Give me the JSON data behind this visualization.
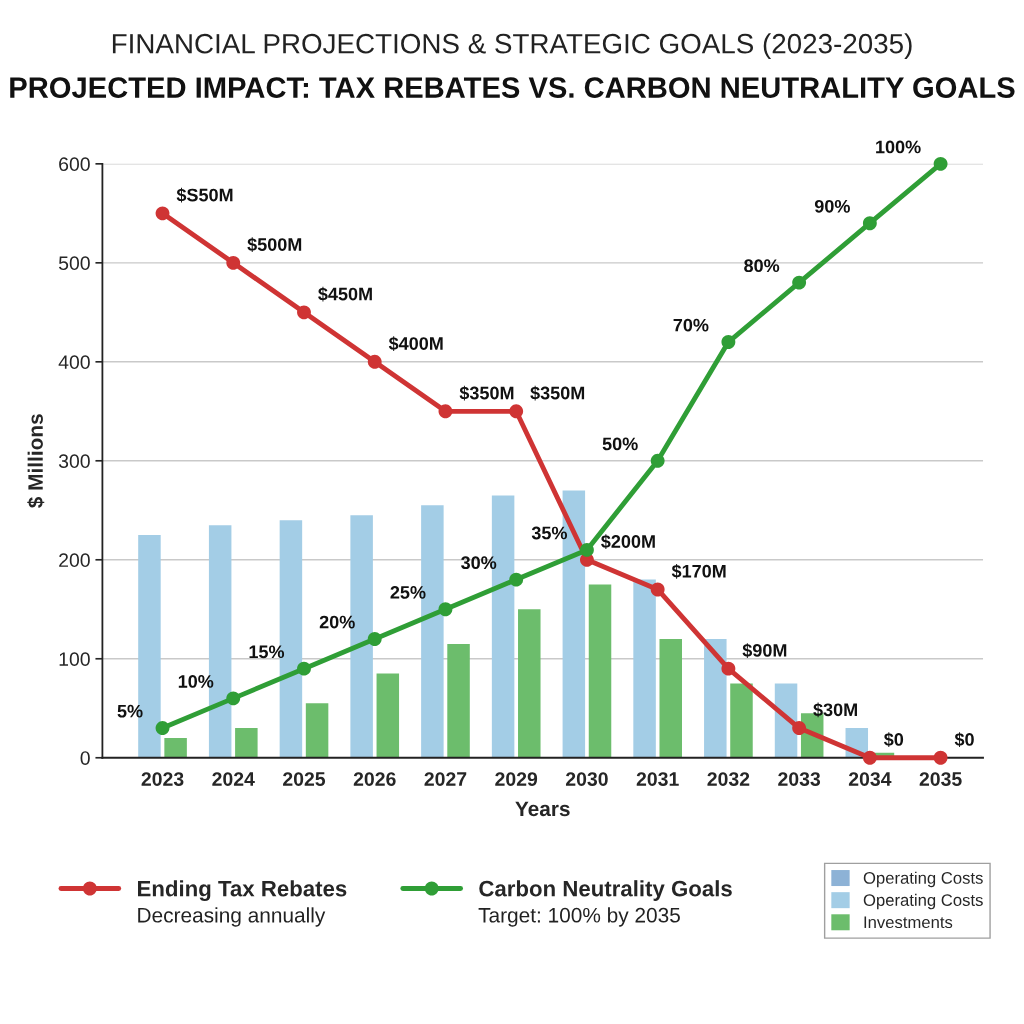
{
  "chart_data": {
    "type": "bar",
    "title": "FINANCIAL PROJECTIONS & STRATEGIC GOALS (2023-2035)",
    "subtitle": "PROJECTED IMPACT: TAX REBATES VS. CARBON NEUTRALITY GOALS",
    "xlabel": "Years",
    "ylabel": "$ Millions",
    "annotations": [
      "Decreasing annually",
      "Target: 100% by 2035"
    ],
    "categories": [
      "2023",
      "2024",
      "2025",
      "2026",
      "2027",
      "2029",
      "2030",
      "2031",
      "2032",
      "2033",
      "2034",
      "2035"
    ],
    "series": [
      {
        "name": "Ending Tax Rebates",
        "type": "line",
        "color": "#cf3434",
        "values": [
          550,
          500,
          450,
          400,
          350,
          350,
          200,
          170,
          90,
          30,
          0,
          0
        ],
        "value_labels": [
          "$S50M",
          "$500M",
          "$450M",
          "$400M",
          "$350M",
          "$350M",
          "$200M",
          "$170M",
          "$90M",
          "$30M",
          "$0",
          "$0"
        ]
      },
      {
        "name": "Carbon Neutrality Goals",
        "type": "line",
        "axis": "y2",
        "color": "#2f9e36",
        "values": [
          5,
          10,
          15,
          20,
          25,
          30,
          35,
          50,
          70,
          80,
          90,
          100
        ],
        "value_labels": [
          "5%",
          "10%",
          "15%",
          "20%",
          "25%",
          "30%",
          "35%",
          "50%",
          "70%",
          "80%",
          "90%",
          "100%"
        ]
      },
      {
        "name": "Operating Costs",
        "color": "#8db2d6",
        "values": [
          null,
          null,
          null,
          null,
          null,
          null,
          null,
          null,
          null,
          null,
          null,
          null
        ]
      },
      {
        "name": "Operating Costs",
        "color": "#a3cde6",
        "values": [
          225,
          235,
          240,
          245,
          255,
          265,
          270,
          180,
          120,
          75,
          30,
          null
        ]
      },
      {
        "name": "Investments",
        "color": "#6cbd6c",
        "values": [
          20,
          30,
          55,
          85,
          115,
          150,
          175,
          120,
          75,
          45,
          5,
          null
        ]
      }
    ],
    "ylim": [
      0,
      600
    ],
    "yticks": [
      0,
      100,
      200,
      300,
      400,
      500,
      600
    ],
    "y2lim": [
      0,
      100
    ],
    "grid": "y",
    "legend": "bottom",
    "marker": "circle"
  }
}
